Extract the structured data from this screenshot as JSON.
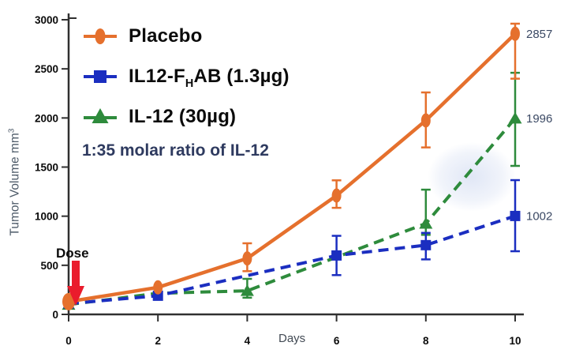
{
  "figure": {
    "background": "#ffffff"
  },
  "chart_data": {
    "type": "line",
    "title": "",
    "xlabel": "Days",
    "ylabel": "Tumor Volume mm³",
    "ylabel_main": "Tumor Volume mm",
    "ylabel_sup": "3",
    "xlim": [
      0,
      10
    ],
    "ylim": [
      0,
      3000
    ],
    "xticks": [
      0,
      2,
      4,
      6,
      8,
      10
    ],
    "yticks": [
      0,
      500,
      1000,
      1500,
      2000,
      2500,
      3000
    ],
    "grid": false,
    "legend_position": "upper-left-inside",
    "annotation": {
      "text": "1:35 molar ratio of IL-12",
      "color": "#2e3a5f"
    },
    "dose": {
      "label": "Dose",
      "arrow_color": "#ea1c2c",
      "at_day": 0
    },
    "value_label_color": "#3b4964",
    "axis_color": "#303030",
    "series": [
      {
        "id": "placebo",
        "name": "Placebo",
        "legend": {
          "pre": "Placebo",
          "sub": "",
          "post": ""
        },
        "color": "#e5702d",
        "line_style": "solid",
        "marker": "diamond",
        "x": [
          0,
          2,
          4,
          6,
          8,
          10
        ],
        "y": [
          130,
          275,
          570,
          1210,
          1975,
          2857
        ],
        "err_lo": [
          null,
          null,
          440,
          1085,
          1700,
          2400
        ],
        "err_hi": [
          null,
          null,
          724,
          1365,
          2260,
          2960
        ],
        "end_label": "2857"
      },
      {
        "id": "il12-fhab",
        "name": "IL12-FHAB (1.3µg)",
        "legend": {
          "pre": "IL12-F",
          "sub": "H",
          "post": "AB (1.3µg)"
        },
        "color": "#1b2ec0",
        "line_style": "dashed",
        "marker": "square",
        "x": [
          0,
          2,
          6,
          8,
          10
        ],
        "y": [
          110,
          190,
          600,
          705,
          1002
        ],
        "err_lo": [
          null,
          null,
          400,
          560,
          643
        ],
        "err_hi": [
          null,
          null,
          800,
          830,
          1367
        ],
        "end_label": "1002"
      },
      {
        "id": "il12",
        "name": "IL-12 (30µg)",
        "legend": {
          "pre": "IL-12 (30µg)",
          "sub": "",
          "post": ""
        },
        "color": "#2e8b3c",
        "line_style": "dashed",
        "marker": "triangle",
        "x": [
          0,
          2,
          4,
          8,
          10
        ],
        "y": [
          100,
          215,
          240,
          925,
          1996
        ],
        "show_marker": [
          true,
          false,
          true,
          true,
          true
        ],
        "err_lo": [
          null,
          null,
          170,
          810,
          1512
        ],
        "err_hi": [
          null,
          null,
          362,
          1270,
          2460
        ],
        "end_label": "1996"
      }
    ]
  }
}
